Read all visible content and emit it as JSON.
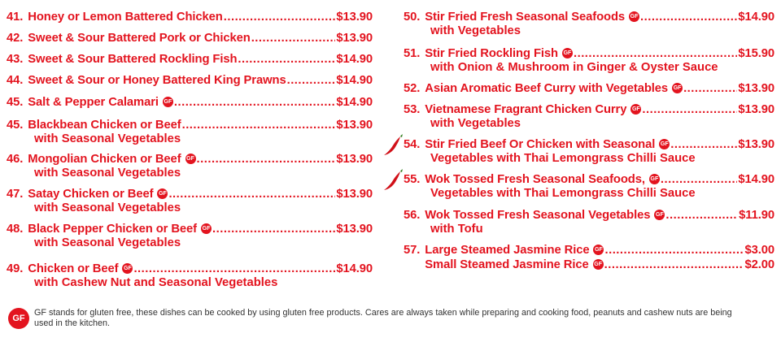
{
  "left_items": [
    {
      "num": "41.",
      "name": "Honey or Lemon Battered Chicken",
      "gf": false,
      "price": "$13.90",
      "sub": ""
    },
    {
      "num": "42.",
      "name": "Sweet & Sour Battered Pork or Chicken",
      "gf": false,
      "price": "$13.90",
      "sub": ""
    },
    {
      "num": "43.",
      "name": "Sweet & Sour Battered Rockling Fish",
      "gf": false,
      "price": "$14.90",
      "sub": ""
    },
    {
      "num": "44.",
      "name": "Sweet & Sour or Honey Battered King Prawns",
      "gf": false,
      "price": "$14.90",
      "sub": ""
    },
    {
      "num": "45.",
      "name": "Salt & Pepper Calamari",
      "gf": true,
      "price": "$14.90",
      "sub": ""
    },
    {
      "num": "45.",
      "name": "Blackbean Chicken or Beef",
      "gf": false,
      "price": "$13.90",
      "sub": "with Seasonal Vegetables"
    },
    {
      "num": "46.",
      "name": "Mongolian Chicken or Beef",
      "gf": true,
      "price": "$13.90",
      "sub": "with Seasonal Vegetables"
    },
    {
      "num": "47.",
      "name": "Satay Chicken or Beef",
      "gf": true,
      "price": "$13.90",
      "sub": "with Seasonal Vegetables"
    },
    {
      "num": "48.",
      "name": "Black Pepper Chicken or Beef",
      "gf": true,
      "price": "$13.90",
      "sub": "with Seasonal Vegetables"
    },
    {
      "num": "49.",
      "name": "Chicken or Beef",
      "gf": true,
      "price": "$14.90",
      "sub": "with Cashew Nut and Seasonal Vegetables"
    }
  ],
  "right_items": [
    {
      "num": "50.",
      "name": "Stir Fried Fresh Seasonal Seafoods",
      "gf": true,
      "price": "$14.90",
      "sub": "with Vegetables",
      "spicy": false
    },
    {
      "num": "51.",
      "name": "Stir Fried Rockling Fish",
      "gf": true,
      "price": "$15.90",
      "sub": "with Onion & Mushroom in Ginger & Oyster Sauce",
      "spicy": false
    },
    {
      "num": "52.",
      "name": "Asian Aromatic Beef Curry with Vegetables",
      "gf": true,
      "price": "$13.90",
      "sub": "",
      "spicy": false
    },
    {
      "num": "53.",
      "name": "Vietnamese Fragrant Chicken Curry",
      "gf": true,
      "price": "$13.90",
      "sub": "with Vegetables",
      "spicy": false
    },
    {
      "num": "54.",
      "name": "Stir Fried Beef Or Chicken with Seasonal",
      "gf": true,
      "price": "$13.90",
      "sub": "Vegetables with Thai Lemongrass Chilli Sauce",
      "spicy": true
    },
    {
      "num": "55.",
      "name": "Wok Tossed Fresh Seasonal Seafoods,",
      "gf": true,
      "price": "$14.90",
      "sub": "Vegetables with Thai Lemongrass Chilli Sauce",
      "spicy": true
    },
    {
      "num": "56.",
      "name": "Wok Tossed Fresh Seasonal Vegetables",
      "gf": true,
      "price": "$11.90",
      "sub": "with Tofu",
      "spicy": false
    },
    {
      "num": "57.",
      "name": "Large Steamed Jasmine Rice",
      "gf": true,
      "price": "$3.00",
      "sub": "",
      "spicy": false
    },
    {
      "num": "",
      "name": "Small Steamed Jasmine Rice",
      "gf": true,
      "price": "$2.00",
      "sub": "",
      "spicy": false
    }
  ],
  "gf_badge": "GF",
  "footnote": "GF stands for gluten free, these dishes can be cooked by using gluten free products. Cares are always taken while preparing and cooking food, peanuts and cashew nuts are being used in the kitchen.",
  "colors": {
    "accent": "#e3141f",
    "footnote_text": "#333333"
  },
  "icons": {
    "gluten_free": "gf-badge-icon",
    "spicy": "chili-pepper-icon"
  }
}
